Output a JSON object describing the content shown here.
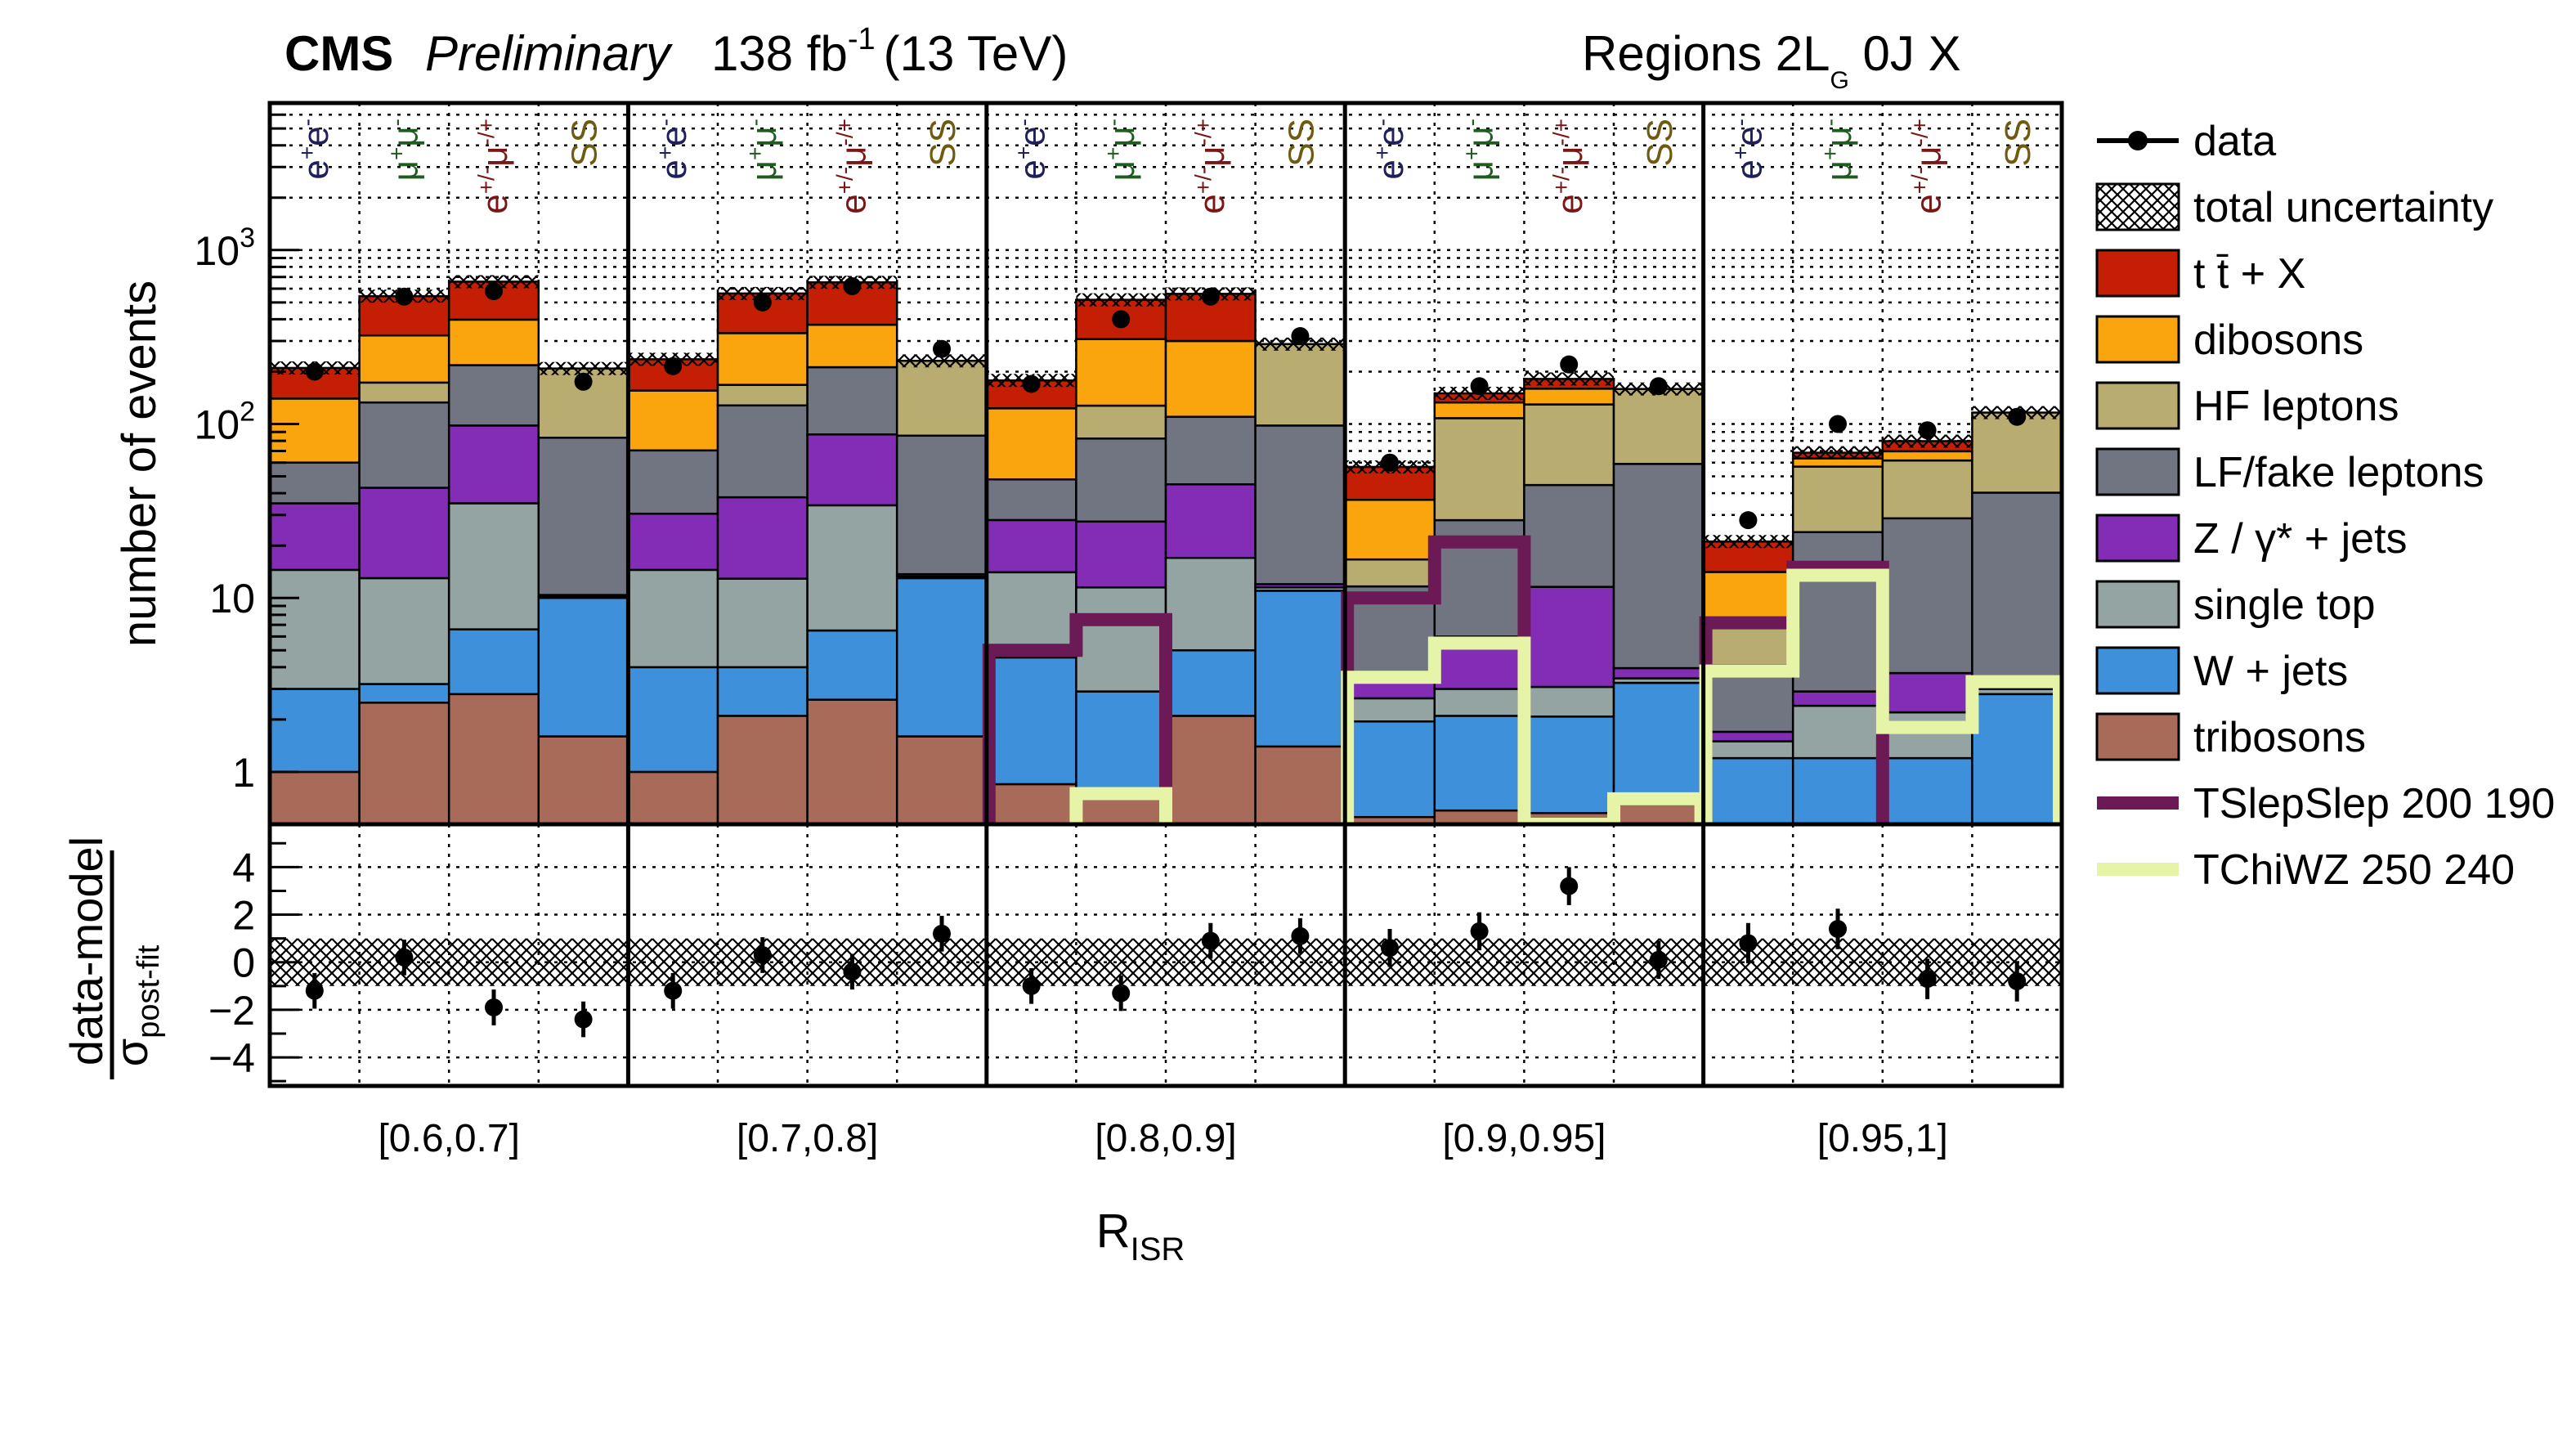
{
  "header": {
    "cms": "CMS",
    "preliminary": "Preliminary",
    "lumi_value": "138 fb",
    "lumi_exp": "-1",
    "energy": "(13 TeV)",
    "region_prefix": "Regions  2L",
    "region_sub": "G",
    "region_suffix": " 0J  X"
  },
  "chart_data": {
    "type": "bar",
    "stacked": true,
    "yscale": "log",
    "ylim": [
      0.5,
      7000
    ],
    "ylabel": "number of events",
    "yticks": [
      {
        "v": 1,
        "label": "1"
      },
      {
        "v": 10,
        "label": "10"
      },
      {
        "v": 100,
        "label": "10",
        "exp": "2"
      },
      {
        "v": 1000,
        "label": "10",
        "exp": "3"
      }
    ],
    "xlabel": "R",
    "xlabel_sub": "ISR",
    "groups": [
      "[0.6,0.7]",
      "[0.7,0.8]",
      "[0.8,0.9]",
      "[0.9,0.95]",
      "[0.95,1]"
    ],
    "channels": [
      {
        "base": "e",
        "sup": "+",
        "tail": "e",
        "tsup": "-",
        "color": "#1f1f5c"
      },
      {
        "base": "μ",
        "sup": "+",
        "tail": "μ",
        "tsup": "-",
        "color": "#1f5c1f"
      },
      {
        "base": "e",
        "sup": "+/-",
        "tail": "μ",
        "tsup": "-/+",
        "color": "#7a1616"
      },
      {
        "base": "SS",
        "sup": "",
        "tail": "",
        "tsup": "",
        "color": "#6e5a10"
      }
    ],
    "stack_order": [
      "tribosons",
      "wjets",
      "singletop",
      "zjets",
      "lffake",
      "hf",
      "dibosons",
      "ttx"
    ],
    "stack": {
      "tribosons": [
        1.0,
        2.5,
        2.8,
        1.6,
        1.0,
        2.1,
        2.6,
        1.6,
        0.85,
        0.7,
        2.1,
        1.4,
        0.55,
        0.6,
        0.58,
        0.65,
        0.5,
        0.5,
        0.5,
        0.5
      ],
      "wjets": [
        2.0,
        0.7,
        3.8,
        8.4,
        3.0,
        1.9,
        3.9,
        11.4,
        3.7,
        2.2,
        2.9,
        9.6,
        1.4,
        1.5,
        1.5,
        2.6,
        0.7,
        0.7,
        0.7,
        2.3
      ],
      "singletop": [
        11.5,
        9.8,
        28.4,
        0.2,
        10.5,
        8.9,
        27.6,
        0.3,
        9.5,
        8.6,
        12.0,
        0.5,
        0.7,
        0.9,
        1.0,
        0.2,
        0.3,
        1.2,
        1.0,
        0.2
      ],
      "zjets": [
        20.5,
        30.0,
        63.0,
        0.2,
        16.0,
        25.0,
        53.0,
        0.4,
        14.0,
        16.0,
        28.0,
        0.5,
        1.0,
        3.0,
        8.5,
        0.5,
        0.2,
        0.5,
        1.5,
        0.3
      ],
      "lffake": [
        25.0,
        90.0,
        120.0,
        73.0,
        40.0,
        90.0,
        125.0,
        72.0,
        20.0,
        55.0,
        65.0,
        86.0,
        8.0,
        22.0,
        33.0,
        55.0,
        2.4,
        21.0,
        25.0,
        37.0
      ],
      "hf": [
        0.0,
        40.0,
        0.0,
        125.0,
        0.0,
        40.0,
        0.0,
        145.0,
        0.0,
        45.0,
        0.0,
        190.0,
        5.0,
        80.0,
        85.0,
        100.0,
        3.0,
        33.0,
        33.0,
        76.0
      ],
      "dibosons": [
        80.0,
        150.0,
        180.0,
        0.0,
        85.0,
        165.0,
        160.0,
        0.0,
        75.0,
        180.0,
        190.0,
        0.0,
        20.0,
        25.0,
        30.0,
        0.0,
        7.0,
        6.5,
        8.0,
        0.0
      ],
      "ttx": [
        70.0,
        220.0,
        260.0,
        0.0,
        80.0,
        230.0,
        280.0,
        0.0,
        55.0,
        210.0,
        260.0,
        0.0,
        20.0,
        17.0,
        22.0,
        0.0,
        7.0,
        5.0,
        10.0,
        0.0
      ]
    },
    "data": [
      200,
      540,
      580,
      175,
      215,
      500,
      620,
      270,
      170,
      400,
      540,
      320,
      60,
      165,
      220,
      165,
      28,
      100,
      92,
      110
    ],
    "signals": [
      {
        "name": "TSlepSlep 200 190",
        "values": [
          0,
          0,
          0,
          0,
          0,
          0,
          0,
          0,
          5,
          7.5,
          0,
          0,
          10,
          21,
          0,
          0,
          7.2,
          15,
          0,
          0
        ]
      },
      {
        "name": "TChiWZ 250 240",
        "values": [
          0,
          0,
          0,
          0,
          0,
          0,
          0,
          0,
          0,
          0.75,
          0,
          0,
          3.5,
          5.5,
          0.5,
          0.7,
          3.8,
          13.5,
          1.8,
          3.3
        ]
      }
    ],
    "ratio": {
      "ylabel_num": "data-model",
      "ylabel_den": "σ",
      "ylabel_den_sub": "post-fit",
      "ylim": [
        -5.2,
        5.8
      ],
      "yticks": [
        {
          "v": 4,
          "label": "4"
        },
        {
          "v": 2,
          "label": "2"
        },
        {
          "v": 0,
          "label": "0"
        },
        {
          "v": -2,
          "label": "−2"
        },
        {
          "v": -4,
          "label": "−4"
        }
      ],
      "values": [
        -1.2,
        0.2,
        -1.9,
        -2.4,
        -1.2,
        0.3,
        -0.4,
        1.2,
        -1.0,
        -1.3,
        0.9,
        1.1,
        0.6,
        1.3,
        3.2,
        0.1,
        0.8,
        1.4,
        -0.7,
        -0.8
      ],
      "errors": [
        0.75,
        0.75,
        0.75,
        0.75,
        0.75,
        0.75,
        0.75,
        0.75,
        0.75,
        0.75,
        0.75,
        0.75,
        0.8,
        0.8,
        0.8,
        0.8,
        0.85,
        0.85,
        0.85,
        0.85
      ],
      "band": [
        -1,
        1
      ]
    },
    "legend": [
      {
        "key": "data",
        "label": "data",
        "type": "marker",
        "color": "#000000"
      },
      {
        "key": "unc",
        "label": "total uncertainty",
        "type": "hatch",
        "color": "#000000"
      },
      {
        "key": "ttx",
        "label": "t t̄ + X",
        "type": "fill",
        "color": "#c41f04"
      },
      {
        "key": "dibosons",
        "label": "dibosons",
        "type": "fill",
        "color": "#fba50e"
      },
      {
        "key": "hf",
        "label": "HF leptons",
        "type": "fill",
        "color": "#b9ac70"
      },
      {
        "key": "lffake",
        "label": "LF/fake leptons",
        "type": "fill",
        "color": "#717581"
      },
      {
        "key": "zjets",
        "label": "Z / γ* + jets",
        "type": "fill",
        "color": "#832db6"
      },
      {
        "key": "singletop",
        "label": "single top",
        "type": "fill",
        "color": "#94a4a2"
      },
      {
        "key": "wjets",
        "label": "W + jets",
        "type": "fill",
        "color": "#3f90da"
      },
      {
        "key": "tribosons",
        "label": "tribosons",
        "type": "fill",
        "color": "#a96b59"
      },
      {
        "key": "sig1",
        "label": "TSlepSlep 200 190",
        "type": "line",
        "color": "#6b1a55"
      },
      {
        "key": "sig2",
        "label": "TChiWZ 250 240",
        "type": "line",
        "color": "#e5f4a6"
      }
    ]
  }
}
